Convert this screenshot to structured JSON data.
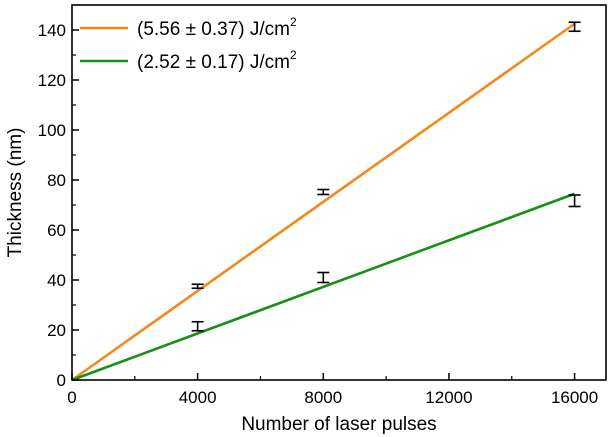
{
  "chart_data": {
    "type": "line",
    "title": "",
    "xlabel": "Number of laser pulses",
    "ylabel": "Thickness (nm)",
    "xlim": [
      0,
      17000
    ],
    "ylim": [
      0,
      150
    ],
    "x_ticks": [
      0,
      4000,
      8000,
      12000,
      16000
    ],
    "y_ticks": [
      0,
      20,
      40,
      60,
      80,
      100,
      120,
      140
    ],
    "x_tick_labels": [
      "0",
      "4000",
      "8000",
      "12000",
      "16000"
    ],
    "y_tick_labels": [
      "0",
      "20",
      "40",
      "60",
      "80",
      "100",
      "120",
      "140"
    ],
    "grid": false,
    "legend_position": "top-left",
    "series": [
      {
        "name": "(5.56 ± 0.37) J/cm",
        "name_superscript": "2",
        "color": "#f28a1b",
        "line": {
          "x": [
            0,
            16000
          ],
          "y": [
            0,
            142.5
          ]
        },
        "points": [
          {
            "x": 4000,
            "y": 37.5,
            "err": 0.8
          },
          {
            "x": 8000,
            "y": 75.2,
            "err": 1.0
          },
          {
            "x": 16000,
            "y": 141.3,
            "err": 1.8
          }
        ]
      },
      {
        "name": "(2.52 ± 0.17) J/cm",
        "name_superscript": "2",
        "color": "#169116",
        "line": {
          "x": [
            0,
            16000
          ],
          "y": [
            0,
            74.5
          ]
        },
        "points": [
          {
            "x": 4000,
            "y": 21.5,
            "err": 1.8
          },
          {
            "x": 8000,
            "y": 41.0,
            "err": 2.0
          },
          {
            "x": 16000,
            "y": 71.7,
            "err": 2.3
          }
        ]
      }
    ]
  }
}
